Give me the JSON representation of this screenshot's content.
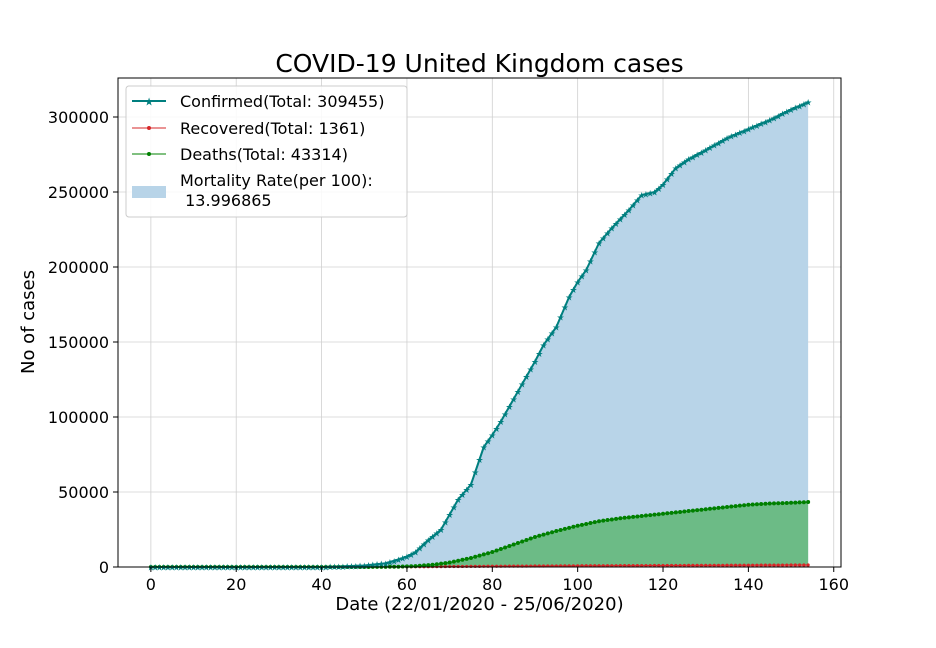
{
  "chart_data": {
    "type": "line",
    "title": "COVID-19 United Kingdom cases",
    "xlabel": "Date (22/01/2020 - 25/06/2020)",
    "ylabel": "No of cases",
    "xlim": [
      -7.7,
      161.7
    ],
    "ylim": [
      0,
      326000
    ],
    "x_ticks": [
      0,
      20,
      40,
      60,
      80,
      100,
      120,
      140,
      160
    ],
    "y_ticks": [
      0,
      50000,
      100000,
      150000,
      200000,
      250000,
      300000
    ],
    "grid": true,
    "legend_position": "top-left",
    "colors": {
      "confirmed": "#007f7f",
      "recovered": "#d62728",
      "deaths": "#008000",
      "confirmed_fill": "#b8d4e8",
      "deaths_fill": "#6cbb86",
      "recovered_fill": "#d9a0a0"
    },
    "legend": [
      {
        "key": "confirmed",
        "label": "Confirmed(Total: 309455)",
        "marker": "star"
      },
      {
        "key": "recovered",
        "label": "Recovered(Total: 1361)",
        "marker": "dot"
      },
      {
        "key": "deaths",
        "label": "Deaths(Total: 43314)",
        "marker": "dot"
      },
      {
        "key": "mortality",
        "label": "Mortality Rate(per 100):",
        "label2": " 13.996865",
        "marker": "patch"
      }
    ],
    "x": "0..154 (day index)",
    "series": [
      {
        "name": "Confirmed(Total: 309455)",
        "anchors": [
          [
            0,
            0
          ],
          [
            40,
            0
          ],
          [
            50,
            1000
          ],
          [
            55,
            2500
          ],
          [
            58,
            5000
          ],
          [
            60,
            7000
          ],
          [
            62,
            10000
          ],
          [
            65,
            18000
          ],
          [
            68,
            25000
          ],
          [
            70,
            35000
          ],
          [
            72,
            45000
          ],
          [
            75,
            55000
          ],
          [
            78,
            80000
          ],
          [
            80,
            88000
          ],
          [
            82,
            97000
          ],
          [
            85,
            112000
          ],
          [
            88,
            127000
          ],
          [
            90,
            137000
          ],
          [
            92,
            148000
          ],
          [
            95,
            160000
          ],
          [
            98,
            180000
          ],
          [
            100,
            190000
          ],
          [
            102,
            198000
          ],
          [
            105,
            216000
          ],
          [
            108,
            226000
          ],
          [
            110,
            232000
          ],
          [
            112,
            238000
          ],
          [
            115,
            248000
          ],
          [
            118,
            250000
          ],
          [
            120,
            255000
          ],
          [
            123,
            266000
          ],
          [
            126,
            272000
          ],
          [
            130,
            278000
          ],
          [
            135,
            286000
          ],
          [
            140,
            292000
          ],
          [
            145,
            298000
          ],
          [
            150,
            305000
          ],
          [
            154,
            310000
          ]
        ]
      },
      {
        "name": "Recovered(Total: 1361)",
        "anchors": [
          [
            0,
            0
          ],
          [
            50,
            0
          ],
          [
            60,
            100
          ],
          [
            80,
            500
          ],
          [
            100,
            800
          ],
          [
            120,
            1000
          ],
          [
            140,
            1200
          ],
          [
            154,
            1361
          ]
        ]
      },
      {
        "name": "Deaths(Total: 43314)",
        "anchors": [
          [
            0,
            0
          ],
          [
            50,
            0
          ],
          [
            58,
            200
          ],
          [
            62,
            600
          ],
          [
            66,
            1500
          ],
          [
            70,
            3000
          ],
          [
            75,
            6000
          ],
          [
            80,
            10000
          ],
          [
            85,
            15000
          ],
          [
            90,
            20000
          ],
          [
            95,
            24000
          ],
          [
            100,
            27500
          ],
          [
            105,
            30500
          ],
          [
            110,
            32500
          ],
          [
            115,
            34000
          ],
          [
            120,
            35500
          ],
          [
            125,
            37000
          ],
          [
            130,
            38500
          ],
          [
            135,
            40000
          ],
          [
            140,
            41500
          ],
          [
            145,
            42300
          ],
          [
            150,
            42800
          ],
          [
            154,
            43314
          ]
        ]
      }
    ]
  }
}
